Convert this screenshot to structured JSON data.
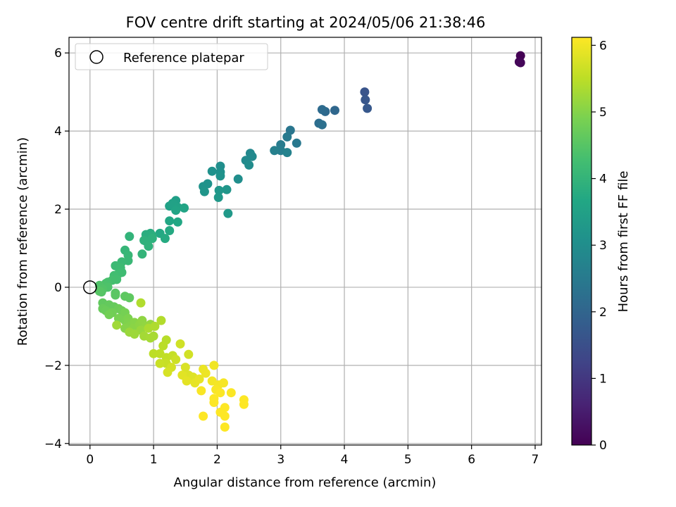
{
  "chart_data": {
    "type": "scatter",
    "title": "FOV centre drift starting at 2024/05/06 21:38:46",
    "xlabel": "Angular distance from reference (arcmin)",
    "ylabel": "Rotation from reference (arcmin)",
    "xlim": [
      -0.33,
      7.1
    ],
    "ylim": [
      -4.04,
      6.4
    ],
    "xticks": [
      0,
      1,
      2,
      3,
      4,
      5,
      6,
      7
    ],
    "yticks": [
      -4,
      -2,
      0,
      2,
      4,
      6
    ],
    "grid": true,
    "legend": {
      "placement": "top-left",
      "entries": [
        "Reference platepar"
      ]
    },
    "reference_point": {
      "x": 0,
      "y": 0,
      "marker": "open circle",
      "color": "#000000"
    },
    "colorbar": {
      "label": "Hours from first FF file",
      "colormap": "viridis",
      "range": [
        0,
        6.12
      ],
      "ticks": [
        0,
        1,
        2,
        3,
        4,
        5,
        6
      ]
    },
    "series": [
      {
        "points": [
          [
            6.77,
            5.93,
            0.0
          ],
          [
            6.75,
            5.77,
            0.05
          ],
          [
            6.77,
            5.75,
            0.1
          ],
          [
            4.32,
            5.0,
            1.6
          ],
          [
            4.33,
            4.8,
            1.65
          ],
          [
            4.36,
            4.58,
            1.7
          ],
          [
            3.85,
            4.53,
            2.05
          ],
          [
            3.7,
            4.5,
            2.1
          ],
          [
            3.65,
            4.55,
            2.15
          ],
          [
            3.6,
            4.2,
            2.2
          ],
          [
            3.65,
            4.16,
            2.25
          ],
          [
            3.15,
            4.02,
            2.4
          ],
          [
            3.25,
            3.69,
            2.45
          ],
          [
            3.1,
            3.85,
            2.5
          ],
          [
            3.0,
            3.65,
            2.55
          ],
          [
            3.0,
            3.5,
            2.6
          ],
          [
            2.9,
            3.5,
            2.65
          ],
          [
            3.1,
            3.45,
            2.7
          ],
          [
            2.52,
            3.43,
            2.85
          ],
          [
            2.55,
            3.35,
            2.88
          ],
          [
            2.45,
            3.25,
            2.9
          ],
          [
            2.5,
            3.13,
            2.95
          ],
          [
            2.33,
            2.77,
            3.0
          ],
          [
            2.05,
            3.1,
            3.0
          ],
          [
            2.05,
            2.95,
            3.05
          ],
          [
            1.92,
            2.97,
            3.08
          ],
          [
            2.05,
            2.85,
            3.1
          ],
          [
            1.85,
            2.65,
            3.12
          ],
          [
            1.78,
            2.58,
            3.15
          ],
          [
            1.8,
            2.45,
            3.2
          ],
          [
            2.15,
            2.5,
            3.22
          ],
          [
            2.03,
            2.48,
            3.25
          ],
          [
            2.02,
            2.3,
            3.28
          ],
          [
            2.17,
            1.89,
            3.3
          ],
          [
            1.35,
            2.22,
            3.45
          ],
          [
            1.25,
            2.08,
            3.5
          ],
          [
            1.3,
            2.15,
            3.52
          ],
          [
            1.38,
            2.05,
            3.55
          ],
          [
            1.48,
            2.03,
            3.58
          ],
          [
            1.35,
            1.97,
            3.6
          ],
          [
            1.25,
            1.7,
            3.65
          ],
          [
            1.38,
            1.67,
            3.68
          ],
          [
            1.1,
            1.38,
            3.7
          ],
          [
            1.25,
            1.45,
            3.72
          ],
          [
            1.18,
            1.25,
            3.75
          ],
          [
            0.95,
            1.38,
            3.8
          ],
          [
            0.88,
            1.35,
            3.83
          ],
          [
            0.98,
            1.32,
            3.85
          ],
          [
            0.88,
            1.18,
            3.88
          ],
          [
            0.98,
            1.25,
            3.9
          ],
          [
            0.85,
            1.2,
            3.92
          ],
          [
            0.92,
            1.05,
            3.95
          ],
          [
            0.62,
            1.3,
            3.98
          ],
          [
            0.82,
            0.85,
            4.0
          ],
          [
            0.55,
            0.95,
            4.05
          ],
          [
            0.6,
            0.82,
            4.08
          ],
          [
            0.6,
            0.68,
            4.1
          ],
          [
            0.5,
            0.65,
            4.12
          ],
          [
            0.4,
            0.55,
            4.15
          ],
          [
            0.48,
            0.5,
            4.18
          ],
          [
            0.5,
            0.38,
            4.2
          ],
          [
            0.45,
            0.35,
            4.22
          ],
          [
            0.38,
            0.3,
            4.25
          ],
          [
            0.42,
            0.2,
            4.28
          ],
          [
            0.35,
            0.18,
            4.3
          ],
          [
            0.28,
            0.13,
            4.32
          ],
          [
            0.25,
            0.1,
            4.35
          ],
          [
            0.22,
            0.05,
            4.38
          ],
          [
            0.28,
            0.0,
            4.4
          ],
          [
            0.15,
            0.05,
            4.42
          ],
          [
            0.2,
            -0.05,
            4.45
          ],
          [
            0.18,
            -0.12,
            4.48
          ],
          [
            0.15,
            -0.1,
            4.5
          ],
          [
            0.4,
            -0.15,
            4.52
          ],
          [
            0.4,
            -0.2,
            4.55
          ],
          [
            0.55,
            -0.23,
            4.58
          ],
          [
            0.62,
            -0.27,
            4.6
          ],
          [
            0.2,
            -0.4,
            4.62
          ],
          [
            0.3,
            -0.45,
            4.65
          ],
          [
            0.38,
            -0.5,
            4.68
          ],
          [
            0.2,
            -0.55,
            4.7
          ],
          [
            0.25,
            -0.6,
            4.72
          ],
          [
            0.45,
            -0.55,
            4.75
          ],
          [
            0.5,
            -0.6,
            4.78
          ],
          [
            0.35,
            -0.65,
            4.8
          ],
          [
            0.3,
            -0.7,
            4.82
          ],
          [
            0.55,
            -0.65,
            4.85
          ],
          [
            0.45,
            -0.8,
            4.88
          ],
          [
            0.55,
            -0.85,
            4.9
          ],
          [
            0.6,
            -0.8,
            4.92
          ],
          [
            0.6,
            -0.9,
            4.95
          ],
          [
            0.62,
            -1.0,
            4.98
          ],
          [
            0.55,
            -1.05,
            5.0
          ],
          [
            0.7,
            -0.9,
            5.02
          ],
          [
            0.68,
            -1.05,
            5.05
          ],
          [
            0.78,
            -0.95,
            5.08
          ],
          [
            0.82,
            -0.85,
            5.1
          ],
          [
            0.88,
            -1.0,
            5.12
          ],
          [
            0.95,
            -0.95,
            5.15
          ],
          [
            0.8,
            -1.1,
            5.18
          ],
          [
            0.62,
            -1.15,
            5.2
          ],
          [
            0.7,
            -1.2,
            5.22
          ],
          [
            0.42,
            -0.97,
            5.25
          ],
          [
            0.85,
            -1.25,
            5.28
          ],
          [
            0.95,
            -1.3,
            5.3
          ],
          [
            1.0,
            -1.25,
            5.32
          ],
          [
            0.92,
            -1.05,
            5.35
          ],
          [
            1.02,
            -1.0,
            5.38
          ],
          [
            0.8,
            -0.4,
            5.4
          ],
          [
            1.12,
            -0.85,
            5.42
          ],
          [
            1.2,
            -1.35,
            5.45
          ],
          [
            1.15,
            -1.5,
            5.48
          ],
          [
            1.0,
            -1.7,
            5.5
          ],
          [
            1.1,
            -1.7,
            5.52
          ],
          [
            1.2,
            -1.8,
            5.55
          ],
          [
            1.3,
            -1.75,
            5.58
          ],
          [
            1.2,
            -1.95,
            5.6
          ],
          [
            1.1,
            -1.95,
            5.62
          ],
          [
            1.35,
            -1.85,
            5.65
          ],
          [
            1.42,
            -1.45,
            5.68
          ],
          [
            1.55,
            -1.72,
            5.7
          ],
          [
            1.28,
            -2.05,
            5.72
          ],
          [
            1.22,
            -2.18,
            5.75
          ],
          [
            1.5,
            -2.05,
            5.78
          ],
          [
            1.55,
            -2.25,
            5.8
          ],
          [
            1.62,
            -2.3,
            5.82
          ],
          [
            1.45,
            -2.25,
            5.85
          ],
          [
            1.52,
            -2.4,
            5.88
          ],
          [
            1.65,
            -2.45,
            5.9
          ],
          [
            1.72,
            -2.35,
            5.92
          ],
          [
            1.78,
            -2.1,
            5.95
          ],
          [
            1.82,
            -2.2,
            5.97
          ],
          [
            1.95,
            -2.0,
            6.0
          ],
          [
            1.92,
            -2.4,
            6.02
          ],
          [
            2.02,
            -2.5,
            6.03
          ],
          [
            2.1,
            -2.45,
            6.05
          ],
          [
            1.98,
            -2.62,
            6.07
          ],
          [
            1.75,
            -2.65,
            6.08
          ],
          [
            2.05,
            -2.7,
            6.1
          ],
          [
            2.22,
            -2.7,
            6.1
          ],
          [
            1.95,
            -2.85,
            6.11
          ],
          [
            1.95,
            -2.95,
            6.11
          ],
          [
            2.12,
            -3.08,
            6.12
          ],
          [
            2.05,
            -3.2,
            6.12
          ],
          [
            2.42,
            -2.88,
            6.12
          ],
          [
            2.42,
            -3.0,
            6.12
          ],
          [
            2.12,
            -3.3,
            6.12
          ],
          [
            1.78,
            -3.3,
            6.12
          ],
          [
            2.12,
            -3.58,
            6.12
          ]
        ]
      }
    ]
  }
}
